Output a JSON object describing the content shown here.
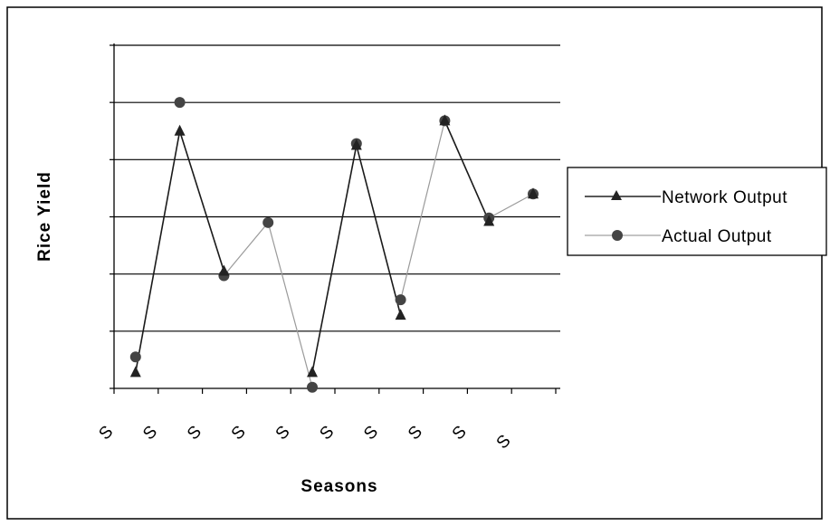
{
  "chart_data": {
    "type": "line",
    "xlabel": "Seasons",
    "ylabel": "Rice Yield",
    "categories": [
      "S",
      "S",
      "S",
      "S",
      "S",
      "S",
      "S",
      "S",
      "S",
      "S"
    ],
    "ylim": [
      0,
      6
    ],
    "y_tick_count": 6,
    "grid": true,
    "legend_placement": "right",
    "series": [
      {
        "name": "Network Output",
        "marker": "triangle",
        "color": "#222222",
        "points": [
          {
            "x": 1,
            "y": 0.28
          },
          {
            "x": 2,
            "y": 4.5
          },
          {
            "x": 3,
            "y": 2.05
          },
          {
            "x": 5,
            "y": 0.28
          },
          {
            "x": 6,
            "y": 4.25
          },
          {
            "x": 7,
            "y": 1.28
          },
          {
            "x": 8,
            "y": 4.68
          },
          {
            "x": 9,
            "y": 2.92
          },
          {
            "x": 10,
            "y": 3.4
          }
        ],
        "segments": [
          [
            1,
            2
          ],
          [
            2,
            3
          ],
          [
            5,
            6
          ],
          [
            6,
            7
          ],
          [
            8,
            9
          ]
        ]
      },
      {
        "name": "Actual Output",
        "marker": "circle",
        "color": "#444444",
        "points": [
          {
            "x": 1,
            "y": 0.55
          },
          {
            "x": 2,
            "y": 5.0
          },
          {
            "x": 3,
            "y": 1.97
          },
          {
            "x": 4,
            "y": 2.9
          },
          {
            "x": 5,
            "y": 0.02
          },
          {
            "x": 6,
            "y": 4.28
          },
          {
            "x": 7,
            "y": 1.55
          },
          {
            "x": 8,
            "y": 4.68
          },
          {
            "x": 9,
            "y": 2.98
          },
          {
            "x": 10,
            "y": 3.4
          }
        ],
        "segments": [
          [
            3,
            4
          ],
          [
            4,
            5
          ],
          [
            7,
            8
          ],
          [
            9,
            10
          ]
        ]
      }
    ]
  }
}
